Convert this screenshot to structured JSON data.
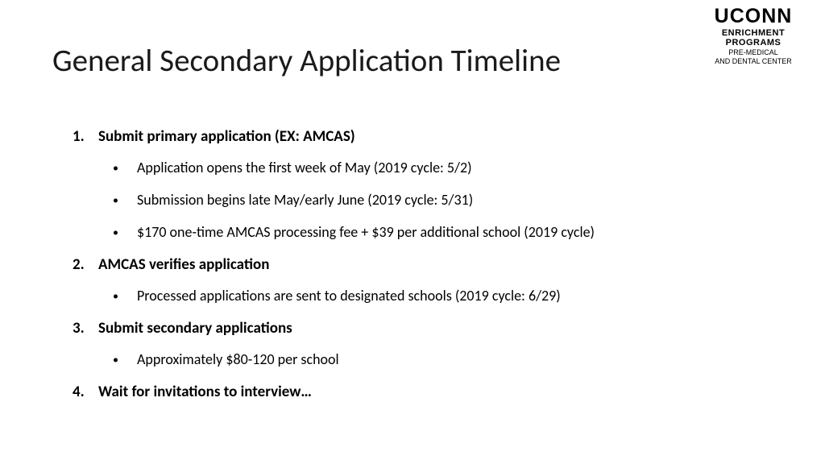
{
  "logo": {
    "main": "UCONN",
    "sub1": "ENRICHMENT PROGRAMS",
    "sub2a": "PRE-MEDICAL",
    "sub2b": "AND DENTAL CENTER"
  },
  "title": "General Secondary Application Timeline",
  "items": {
    "i1_num": "1.",
    "i1_text": "Submit primary application (EX: AMCAS)",
    "i1_s1": "Application opens the first week of May (2019 cycle: 5/2)",
    "i1_s2": "Submission begins late May/early June (2019 cycle: 5/31)",
    "i1_s3": "$170 one-time AMCAS processing fee + $39 per additional school (2019 cycle)",
    "i2_num": "2.",
    "i2_text": "AMCAS verifies application",
    "i2_s1": "Processed applications are sent to designated schools (2019 cycle: 6/29)",
    "i3_num": "3.",
    "i3_text": "Submit secondary applications",
    "i3_s1": "Approximately $80-120 per school",
    "i4_num": "4.",
    "i4_text": "Wait for invitations to interview…"
  },
  "styling": {
    "background_color": "#ffffff",
    "title_color": "#1a1a1a",
    "title_fontsize": 39,
    "title_fontweight": 300,
    "main_fontsize": 19,
    "main_fontweight": 700,
    "sub_fontsize": 18,
    "sub_fontweight": 400,
    "text_color": "#000000",
    "bullet_char": "•"
  }
}
